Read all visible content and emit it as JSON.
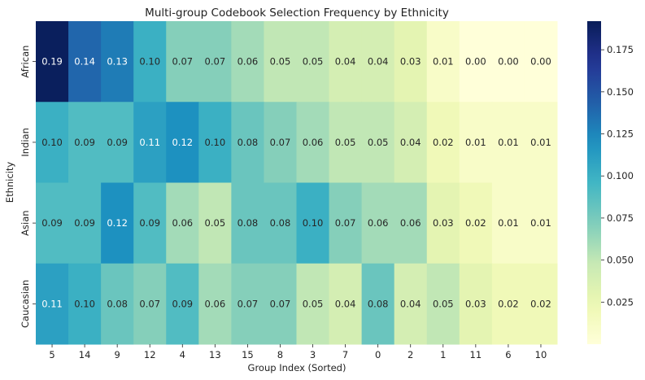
{
  "chart_data": {
    "type": "heatmap",
    "title": "Multi-group Codebook Selection Frequency by Ethnicity",
    "xlabel": "Group Index (Sorted)",
    "ylabel": "Ethnicity",
    "x_categories": [
      "5",
      "14",
      "9",
      "12",
      "4",
      "13",
      "15",
      "8",
      "3",
      "7",
      "0",
      "2",
      "1",
      "11",
      "6",
      "10"
    ],
    "y_categories": [
      "African",
      "Indian",
      "Asian",
      "Caucasian"
    ],
    "values": [
      [
        0.19,
        0.14,
        0.13,
        0.1,
        0.07,
        0.07,
        0.06,
        0.05,
        0.05,
        0.04,
        0.04,
        0.03,
        0.01,
        0.0,
        0.0,
        0.0
      ],
      [
        0.1,
        0.09,
        0.09,
        0.11,
        0.12,
        0.1,
        0.08,
        0.07,
        0.06,
        0.05,
        0.05,
        0.04,
        0.02,
        0.01,
        0.01,
        0.01
      ],
      [
        0.09,
        0.09,
        0.12,
        0.09,
        0.06,
        0.05,
        0.08,
        0.08,
        0.1,
        0.07,
        0.06,
        0.06,
        0.03,
        0.02,
        0.01,
        0.01
      ],
      [
        0.11,
        0.1,
        0.08,
        0.07,
        0.09,
        0.06,
        0.07,
        0.07,
        0.05,
        0.04,
        0.08,
        0.04,
        0.05,
        0.03,
        0.02,
        0.02
      ]
    ],
    "value_labels": [
      [
        "0.19",
        "0.14",
        "0.13",
        "0.10",
        "0.07",
        "0.07",
        "0.06",
        "0.05",
        "0.05",
        "0.04",
        "0.04",
        "0.03",
        "0.01",
        "0.00",
        "0.00",
        "0.00"
      ],
      [
        "0.10",
        "0.09",
        "0.09",
        "0.11",
        "0.12",
        "0.10",
        "0.08",
        "0.07",
        "0.06",
        "0.05",
        "0.05",
        "0.04",
        "0.02",
        "0.01",
        "0.01",
        "0.01"
      ],
      [
        "0.09",
        "0.09",
        "0.12",
        "0.09",
        "0.06",
        "0.05",
        "0.08",
        "0.08",
        "0.10",
        "0.07",
        "0.06",
        "0.06",
        "0.03",
        "0.02",
        "0.01",
        "0.01"
      ],
      [
        "0.11",
        "0.10",
        "0.08",
        "0.07",
        "0.09",
        "0.06",
        "0.07",
        "0.07",
        "0.05",
        "0.04",
        "0.08",
        "0.04",
        "0.05",
        "0.03",
        "0.02",
        "0.02"
      ]
    ],
    "colormap": "YlGnBu",
    "color_range": [
      0.0,
      0.192
    ],
    "colorbar_ticks": [
      "0.025",
      "0.050",
      "0.075",
      "0.100",
      "0.125",
      "0.150",
      "0.175"
    ],
    "colorbar_tick_values": [
      0.025,
      0.05,
      0.075,
      0.1,
      0.125,
      0.15,
      0.175
    ],
    "annotation_colors": {
      "dark": "#262626",
      "light": "#ffffff"
    }
  }
}
